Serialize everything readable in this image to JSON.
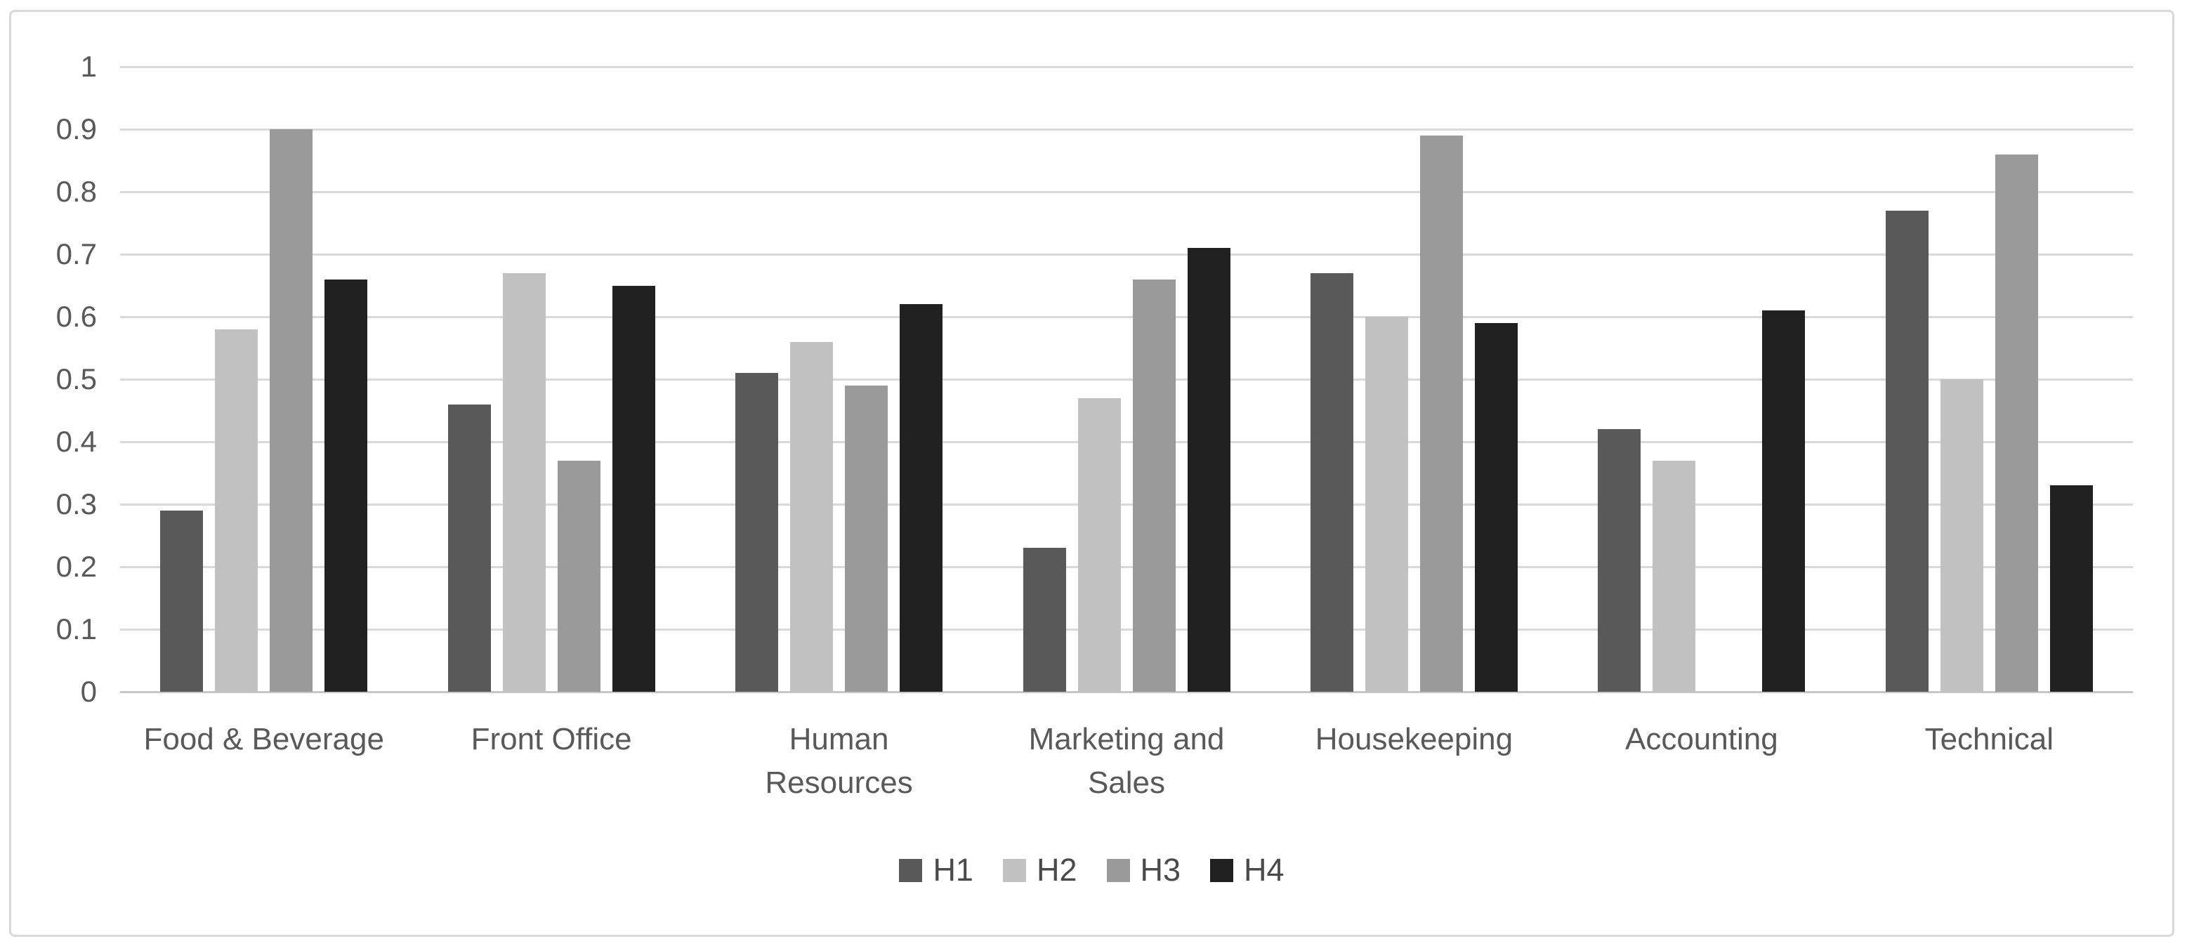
{
  "chart_data": {
    "type": "bar",
    "categories": [
      "Food & Beverage",
      "Front Office",
      "Human Resources",
      "Marketing and Sales",
      "Housekeeping",
      "Accounting",
      "Technical"
    ],
    "series": [
      {
        "name": "H1",
        "color": "#595959",
        "values": [
          0.29,
          0.46,
          0.51,
          0.23,
          0.67,
          0.42,
          0.77
        ]
      },
      {
        "name": "H2",
        "color": "#c1c1c1",
        "values": [
          0.58,
          0.67,
          0.56,
          0.47,
          0.6,
          0.37,
          0.5
        ]
      },
      {
        "name": "H3",
        "color": "#9a9a9a",
        "values": [
          0.9,
          0.37,
          0.49,
          0.66,
          0.89,
          0.0,
          0.86
        ]
      },
      {
        "name": "H4",
        "color": "#212121",
        "values": [
          0.66,
          0.65,
          0.62,
          0.71,
          0.59,
          0.61,
          0.33
        ]
      }
    ],
    "y_axis": {
      "min": 0,
      "max": 1,
      "tick_step": 0.1,
      "tick_labels": [
        "0",
        "0.1",
        "0.2",
        "0.3",
        "0.4",
        "0.5",
        "0.6",
        "0.7",
        "0.8",
        "0.9",
        "1"
      ]
    },
    "legend": {
      "position": "bottom",
      "entries": [
        "H1",
        "H2",
        "H3",
        "H4"
      ]
    },
    "grid": true,
    "colors": {
      "gridline": "#d9d9d9",
      "baseline": "#c6c6c6",
      "tick_text": "#595959",
      "category_text": "#595959",
      "legend_text": "#4a4a4a",
      "frame_border": "#d9d9d9",
      "background": "#ffffff"
    }
  }
}
